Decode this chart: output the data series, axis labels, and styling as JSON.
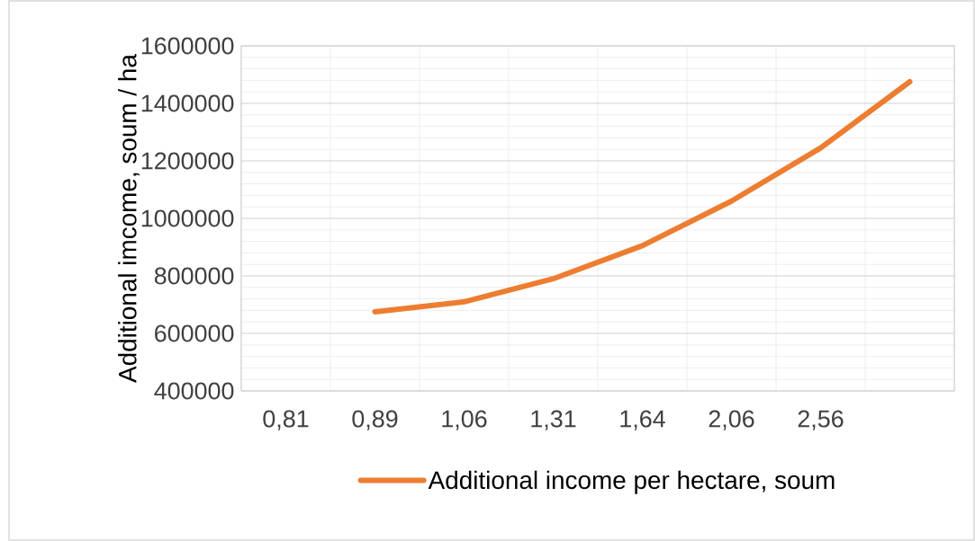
{
  "chart_data": {
    "type": "line",
    "ylabel": "Additional imcome, soum / ha",
    "categories": [
      "0,81",
      "0,89",
      "1,06",
      "1,31",
      "1,64",
      "2,06",
      "2,56",
      null
    ],
    "series": [
      {
        "name": "Additional income per hectare, soum",
        "color": "#ed7d31",
        "values": [
          null,
          675000,
          710000,
          790000,
          905000,
          1060000,
          1245000,
          1475000
        ]
      }
    ],
    "ylim": [
      400000,
      1600000
    ],
    "yticks": [
      400000,
      600000,
      800000,
      1000000,
      1200000,
      1400000,
      1600000
    ],
    "grid": true,
    "legend": "bottom",
    "marker": "none",
    "line_style": "solid"
  }
}
